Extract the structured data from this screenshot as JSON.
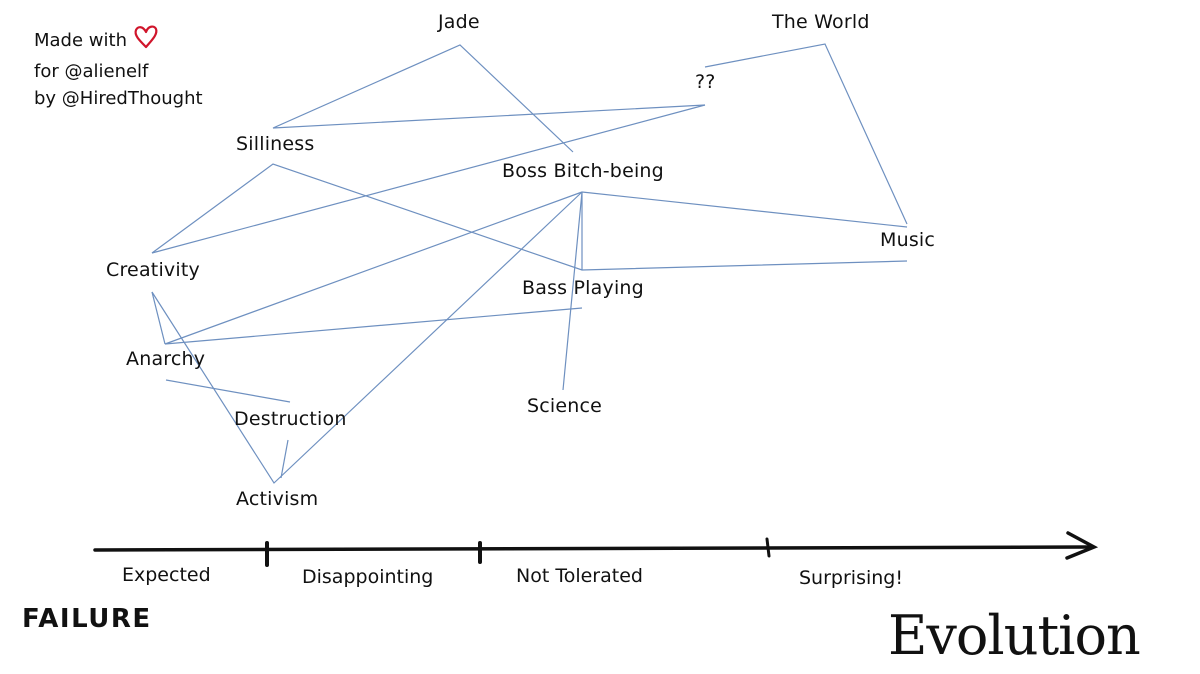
{
  "credits": {
    "line1": "Made with",
    "line2": "for @alienelf",
    "line3": "by @HiredThought",
    "heart_color": "#d0152b"
  },
  "nodes": {
    "jade": "Jade",
    "the_world": "The World",
    "question": "??",
    "silliness": "Silliness",
    "boss": "Boss Bitch-being",
    "music": "Music",
    "creativity": "Creativity",
    "bass": "Bass Playing",
    "anarchy": "Anarchy",
    "destruction": "Destruction",
    "science": "Science",
    "activism": "Activism"
  },
  "axis": {
    "labels": [
      "Expected",
      "Disappointing",
      "Not Tolerated",
      "Surprising!"
    ],
    "left_end": "FAILURE",
    "right_end": "Evolution"
  },
  "colors": {
    "link_line": "#6e90c0",
    "axis_line": "#111111"
  }
}
